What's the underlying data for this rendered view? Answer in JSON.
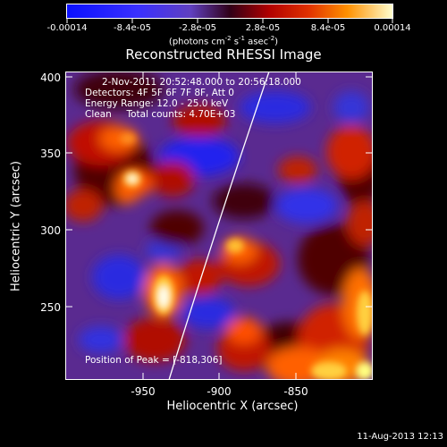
{
  "colorbar": {
    "ticks": [
      "-0.00014",
      "-8.4e-05",
      "-2.8e-05",
      "2.8e-05",
      "8.4e-05",
      "0.00014"
    ],
    "units_prefix": "(photons cm",
    "units_exp1": "-2",
    "units_mid": " s",
    "units_exp2": "-1",
    "units_mid2": " asec",
    "units_exp3": "-2",
    "units_suffix": ")"
  },
  "title": "Reconstructed RHESSI Image",
  "info": {
    "time_range": "2-Nov-2011 20:52:48.000 to 20:56:18.000",
    "detectors": "Detectors: 4F 5F 6F 7F 8F, Att 0",
    "energy": "Energy Range: 12.0 - 25.0 keV",
    "clean": "Clean     Total counts: 4.70E+03",
    "peak": "Position of Peak = [-818,306]"
  },
  "axes": {
    "x_ticks": [
      "-950",
      "-900",
      "-850"
    ],
    "y_ticks": [
      "400",
      "350",
      "300",
      "250"
    ],
    "xlabel": "Heliocentric X (arcsec)",
    "ylabel": "Heliocentric Y (arcsec)"
  },
  "timestamp": "11-Aug-2013 12:13",
  "colors": {
    "background": "#000000",
    "low": "#0000ff",
    "mid": "#5a2d8c",
    "high_red": "#d02000",
    "high_yellow": "#ffe040",
    "peak": "#ffffff"
  }
}
